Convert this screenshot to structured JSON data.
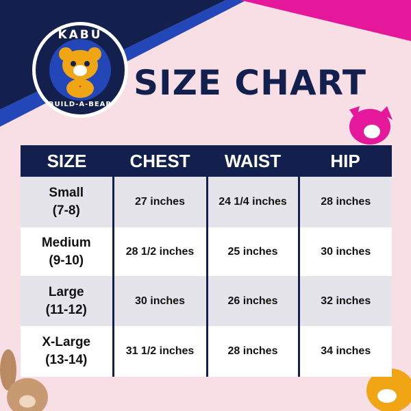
{
  "brand": {
    "logo_top": "KABU",
    "logo_bottom": "BUILD-A-BEAR"
  },
  "title": "SIZE CHART",
  "table": {
    "headers": [
      "SIZE",
      "CHEST",
      "WAIST",
      "HIP"
    ],
    "rows": [
      {
        "size": "Small",
        "ages": "(7-8)",
        "chest": "27 inches",
        "waist": "24 1/4 inches",
        "hip": "28 inches"
      },
      {
        "size": "Medium",
        "ages": "(9-10)",
        "chest": "28 1/2 inches",
        "waist": "25 inches",
        "hip": "30 inches"
      },
      {
        "size": "Large",
        "ages": "(11-12)",
        "chest": "30 inches",
        "waist": "26 inches",
        "hip": "32 inches"
      },
      {
        "size": "X-Large",
        "ages": "(13-14)",
        "chest": "31 1/2 inches",
        "waist": "28 inches",
        "hip": "34 inches"
      }
    ]
  },
  "colors": {
    "navy": "#13204d",
    "blue": "#2346b8",
    "magenta": "#e5179a",
    "pink_bg": "#f8dfe5"
  }
}
